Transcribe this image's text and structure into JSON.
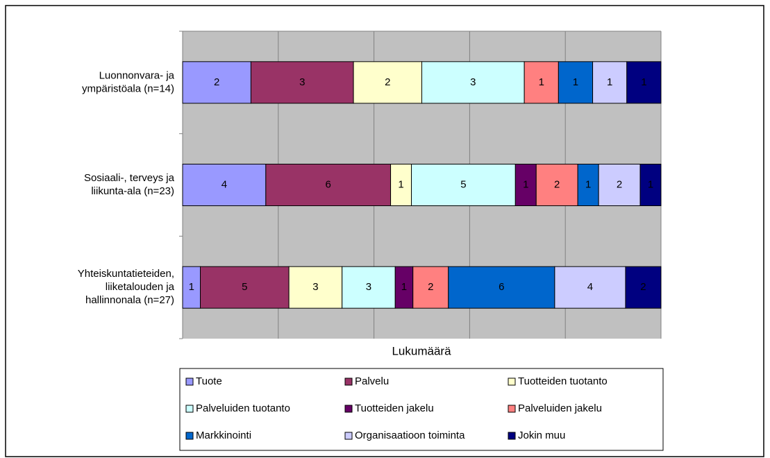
{
  "chart_data": {
    "type": "bar",
    "orientation": "horizontal",
    "stacking": "percent",
    "categories": [
      [
        "Luonnonvara- ja",
        "ympäristöala (n=14)"
      ],
      [
        "Sosiaali-, terveys ja",
        "liikunta-ala (n=23)"
      ],
      [
        "Yhteiskuntatieteiden,",
        "liiketalouden ja",
        "hallinnonala (n=27)"
      ]
    ],
    "x_label": "Lukumäärä",
    "xlim": [
      0,
      100
    ],
    "xticks": [
      0,
      20,
      40,
      60,
      80,
      100
    ],
    "grid": true,
    "series": [
      {
        "name": "Tuote",
        "color": "#9999ff",
        "values": [
          2,
          4,
          1
        ]
      },
      {
        "name": "Palvelu",
        "color": "#993366",
        "values": [
          3,
          6,
          5
        ]
      },
      {
        "name": "Tuotteiden tuotanto",
        "color": "#ffffcc",
        "values": [
          2,
          1,
          3
        ]
      },
      {
        "name": "Palveluiden tuotanto",
        "color": "#ccffff",
        "values": [
          3,
          5,
          3
        ]
      },
      {
        "name": "Tuotteiden jakelu",
        "color": "#660066",
        "values": [
          0,
          1,
          1
        ]
      },
      {
        "name": "Palveluiden jakelu",
        "color": "#ff8080",
        "values": [
          1,
          2,
          2
        ]
      },
      {
        "name": "Markkinointi",
        "color": "#0066cc",
        "values": [
          1,
          1,
          6
        ]
      },
      {
        "name": "Organisaatioon toiminta",
        "color": "#ccccff",
        "values": [
          1,
          2,
          4
        ]
      },
      {
        "name": "Jokin muu",
        "color": "#000080",
        "values": [
          1,
          1,
          2
        ]
      }
    ]
  }
}
